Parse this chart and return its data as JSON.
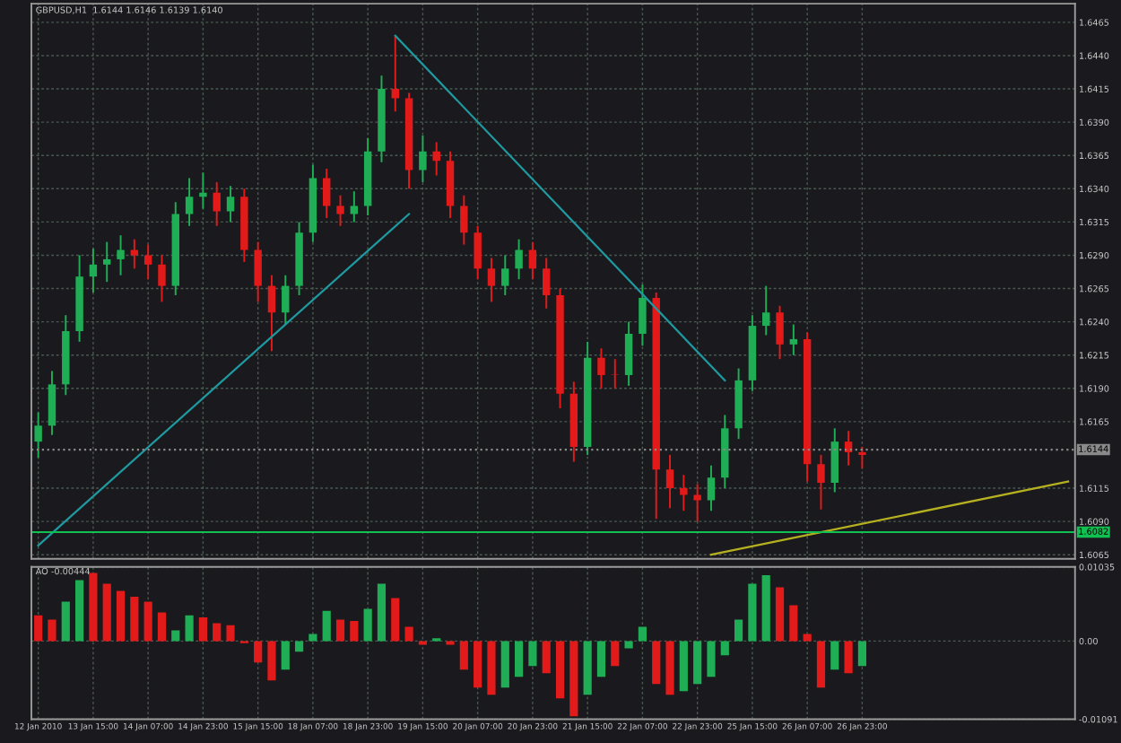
{
  "chart_data": [
    {
      "type": "candlestick",
      "title": "GBPUSD,H1  1.6144 1.6146 1.6139 1.6140",
      "tick_labels": "y",
      "grid": true,
      "legend": false,
      "categories": [
        null,
        null,
        null,
        null,
        null,
        null,
        null,
        null,
        null,
        null,
        null,
        null,
        null,
        null,
        null,
        null,
        null,
        null,
        null,
        null,
        null,
        null,
        null,
        null,
        null,
        null,
        null,
        null,
        null,
        null,
        null,
        null,
        null,
        null,
        null,
        null,
        null,
        null,
        null,
        null,
        null,
        null,
        null,
        null,
        null,
        null,
        null,
        null,
        null,
        null,
        null,
        null,
        null,
        null,
        null,
        null,
        null,
        null,
        null,
        null,
        null,
        null,
        null,
        null,
        null,
        null,
        null,
        null,
        null,
        null,
        null,
        null,
        null,
        null,
        null,
        null
      ],
      "ohlc": [
        [
          1.615,
          1.6172,
          1.6138,
          1.6162
        ],
        [
          1.6162,
          1.6203,
          1.6155,
          1.6193
        ],
        [
          1.6193,
          1.6245,
          1.6185,
          1.6233
        ],
        [
          1.6233,
          1.629,
          1.6225,
          1.6274
        ],
        [
          1.6274,
          1.6295,
          1.6262,
          1.6283
        ],
        [
          1.6283,
          1.63,
          1.627,
          1.6287
        ],
        [
          1.6287,
          1.6305,
          1.6275,
          1.6294
        ],
        [
          1.6294,
          1.6302,
          1.628,
          1.629
        ],
        [
          1.629,
          1.6298,
          1.6272,
          1.6283
        ],
        [
          1.6283,
          1.629,
          1.6255,
          1.6267
        ],
        [
          1.6267,
          1.633,
          1.626,
          1.6321
        ],
        [
          1.6321,
          1.6348,
          1.6312,
          1.6334
        ],
        [
          1.6334,
          1.6352,
          1.6325,
          1.6337
        ],
        [
          1.6337,
          1.6345,
          1.6312,
          1.6323
        ],
        [
          1.6323,
          1.6342,
          1.6315,
          1.6334
        ],
        [
          1.6334,
          1.634,
          1.6285,
          1.6294
        ],
        [
          1.6294,
          1.63,
          1.6255,
          1.6267
        ],
        [
          1.6267,
          1.6275,
          1.6218,
          1.6247
        ],
        [
          1.6247,
          1.6275,
          1.6238,
          1.6267
        ],
        [
          1.6267,
          1.6315,
          1.626,
          1.6307
        ],
        [
          1.6307,
          1.6358,
          1.63,
          1.6348
        ],
        [
          1.6348,
          1.6355,
          1.6318,
          1.6327
        ],
        [
          1.6327,
          1.6335,
          1.6312,
          1.6321
        ],
        [
          1.6321,
          1.6338,
          1.6315,
          1.6327
        ],
        [
          1.6327,
          1.6378,
          1.632,
          1.6368
        ],
        [
          1.6368,
          1.6425,
          1.636,
          1.6415
        ],
        [
          1.6415,
          1.6455,
          1.6398,
          1.6408
        ],
        [
          1.6408,
          1.6412,
          1.634,
          1.6354
        ],
        [
          1.6354,
          1.638,
          1.6345,
          1.6368
        ],
        [
          1.6368,
          1.6375,
          1.635,
          1.6361
        ],
        [
          1.6361,
          1.6368,
          1.6318,
          1.6327
        ],
        [
          1.6327,
          1.6335,
          1.6298,
          1.6307
        ],
        [
          1.6307,
          1.6312,
          1.6272,
          1.628
        ],
        [
          1.628,
          1.6288,
          1.6255,
          1.6267
        ],
        [
          1.6267,
          1.629,
          1.626,
          1.628
        ],
        [
          1.628,
          1.6302,
          1.6272,
          1.6294
        ],
        [
          1.6294,
          1.63,
          1.6272,
          1.628
        ],
        [
          1.628,
          1.6288,
          1.625,
          1.626
        ],
        [
          1.626,
          1.6265,
          1.6175,
          1.6186
        ],
        [
          1.6186,
          1.6195,
          1.6135,
          1.6146
        ],
        [
          1.6146,
          1.6225,
          1.614,
          1.6213
        ],
        [
          1.6213,
          1.622,
          1.619,
          1.62
        ],
        [
          1.62,
          1.6212,
          1.619,
          1.62
        ],
        [
          1.62,
          1.624,
          1.6192,
          1.6231
        ],
        [
          1.6231,
          1.6268,
          1.6222,
          1.6258
        ],
        [
          1.6258,
          1.6262,
          1.6092,
          1.6129
        ],
        [
          1.6129,
          1.614,
          1.61,
          1.6115
        ],
        [
          1.6115,
          1.6125,
          1.6098,
          1.611
        ],
        [
          1.611,
          1.6118,
          1.609,
          1.6106
        ],
        [
          1.6106,
          1.6132,
          1.6098,
          1.6123
        ],
        [
          1.6123,
          1.617,
          1.6115,
          1.616
        ],
        [
          1.616,
          1.6205,
          1.6152,
          1.6196
        ],
        [
          1.6196,
          1.6245,
          1.6188,
          1.6237
        ],
        [
          1.6237,
          1.6267,
          1.623,
          1.6247
        ],
        [
          1.6247,
          1.6252,
          1.6212,
          1.6223
        ],
        [
          1.6223,
          1.6238,
          1.6215,
          1.6227
        ],
        [
          1.6227,
          1.6232,
          1.612,
          1.6133
        ],
        [
          1.6133,
          1.614,
          1.6099,
          1.6119
        ],
        [
          1.6119,
          1.616,
          1.6112,
          1.615
        ],
        [
          1.615,
          1.6158,
          1.6132,
          1.6142
        ],
        [
          1.6142,
          1.6146,
          1.613,
          1.614
        ],
        null,
        null,
        null,
        null,
        null,
        null,
        null,
        null,
        null,
        null,
        null,
        null,
        null,
        null,
        null
      ],
      "colors": [
        "#1fae55",
        "#1fae55",
        "#1fae55",
        "#1fae55",
        "#1fae55",
        "#1fae55",
        "#1fae55",
        "#e31a1a",
        "#e31a1a",
        "#e31a1a",
        "#1fae55",
        "#1fae55",
        "#1fae55",
        "#e31a1a",
        "#1fae55",
        "#e31a1a",
        "#e31a1a",
        "#e31a1a",
        "#1fae55",
        "#1fae55",
        "#1fae55",
        "#e31a1a",
        "#e31a1a",
        "#1fae55",
        "#1fae55",
        "#1fae55",
        "#e31a1a",
        "#e31a1a",
        "#1fae55",
        "#e31a1a",
        "#e31a1a",
        "#e31a1a",
        "#e31a1a",
        "#e31a1a",
        "#1fae55",
        "#1fae55",
        "#e31a1a",
        "#e31a1a",
        "#e31a1a",
        "#e31a1a",
        "#1fae55",
        "#e31a1a",
        "#e31a1a",
        "#1fae55",
        "#1fae55",
        "#e31a1a",
        "#e31a1a",
        "#e31a1a",
        "#e31a1a",
        "#1fae55",
        "#1fae55",
        "#1fae55",
        "#1fae55",
        "#1fae55",
        "#e31a1a",
        "#1fae55",
        "#e31a1a",
        "#e31a1a",
        "#1fae55",
        "#e31a1a",
        "#e31a1a",
        null,
        null,
        null,
        null,
        null,
        null,
        null,
        null,
        null,
        null,
        null,
        null,
        null,
        null,
        null
      ],
      "series": [
        {
          "type": "line",
          "color": "#1e9aa0",
          "values": [
            1.6072,
            null,
            null,
            null,
            null,
            null,
            null,
            null,
            null,
            null,
            null,
            null,
            null,
            null,
            null,
            null,
            null,
            null,
            null,
            null,
            null,
            null,
            null,
            null,
            null,
            null,
            null,
            1.6321,
            null,
            null,
            null,
            null,
            null,
            null,
            null,
            null,
            null,
            null,
            null,
            null,
            null,
            null,
            null,
            null,
            null,
            null,
            null,
            null,
            null,
            null,
            null,
            null,
            null,
            null,
            null,
            null,
            null,
            null,
            null,
            null,
            null,
            null,
            null,
            null,
            null,
            null,
            null,
            null,
            null,
            null,
            null,
            null,
            null,
            null,
            null,
            null
          ]
        },
        {
          "type": "line",
          "color": "#1e9aa0",
          "values": [
            null,
            null,
            null,
            null,
            null,
            null,
            null,
            null,
            null,
            null,
            null,
            null,
            null,
            null,
            null,
            null,
            null,
            null,
            null,
            null,
            null,
            null,
            null,
            null,
            null,
            null,
            1.6455,
            null,
            null,
            null,
            null,
            null,
            null,
            null,
            null,
            null,
            null,
            null,
            null,
            null,
            null,
            null,
            null,
            null,
            null,
            null,
            null,
            null,
            null,
            null,
            1.6196,
            null,
            null,
            null,
            null,
            null,
            null,
            null,
            null,
            null,
            null,
            null,
            null,
            null,
            null,
            null,
            null,
            null,
            null,
            null,
            null,
            null,
            null,
            null,
            null,
            null
          ]
        },
        {
          "type": "line",
          "color": "#b5b020",
          "values": [
            null,
            null,
            null,
            null,
            null,
            null,
            null,
            null,
            null,
            null,
            null,
            null,
            null,
            null,
            null,
            null,
            null,
            null,
            null,
            null,
            null,
            null,
            null,
            null,
            null,
            null,
            null,
            null,
            null,
            null,
            null,
            null,
            null,
            null,
            null,
            null,
            null,
            null,
            null,
            null,
            null,
            null,
            null,
            null,
            null,
            null,
            null,
            null,
            null,
            1.6065,
            null,
            null,
            null,
            null,
            null,
            null,
            null,
            null,
            null,
            null,
            null,
            null,
            null,
            null,
            null,
            null,
            null,
            null,
            null,
            null,
            null,
            null,
            null,
            null,
            null,
            1.612
          ]
        }
      ],
      "ylim": [
        1.6062,
        1.6479
      ],
      "yticks": [
        {
          "value": 1.6065,
          "label": "1.6065"
        },
        {
          "value": 1.609,
          "label": "1.6090"
        },
        {
          "value": 1.6115,
          "label": "1.6115"
        },
        {
          "value": 1.6165,
          "label": "1.6165"
        },
        {
          "value": 1.619,
          "label": "1.6190"
        },
        {
          "value": 1.6215,
          "label": "1.6215"
        },
        {
          "value": 1.624,
          "label": "1.6240"
        },
        {
          "value": 1.6265,
          "label": "1.6265"
        },
        {
          "value": 1.629,
          "label": "1.6290"
        },
        {
          "value": 1.6315,
          "label": "1.6315"
        },
        {
          "value": 1.634,
          "label": "1.6340"
        },
        {
          "value": 1.6365,
          "label": "1.6365"
        },
        {
          "value": 1.639,
          "label": "1.6390"
        },
        {
          "value": 1.6415,
          "label": "1.6415"
        },
        {
          "value": 1.644,
          "label": "1.6440"
        },
        {
          "value": 1.6465,
          "label": "1.6465"
        }
      ],
      "ref_lines": [
        {
          "axis": "y",
          "value": 1.6144,
          "label": "1.6144",
          "color": "#8a8a8a",
          "line_style": "dotted"
        },
        {
          "axis": "y",
          "value": 1.6082,
          "label": "1.6082",
          "color": "#10c050",
          "line_style": "solid"
        }
      ]
    },
    {
      "type": "bar",
      "title": "AO -0.00444",
      "grid": true,
      "legend": false,
      "categories": [
        "12 Jan 2010",
        null,
        null,
        null,
        "13 Jan 15:00",
        null,
        null,
        null,
        "14 Jan 07:00",
        null,
        null,
        null,
        "14 Jan 23:00",
        null,
        null,
        null,
        "15 Jan 15:00",
        null,
        null,
        null,
        "18 Jan 07:00",
        null,
        null,
        null,
        "18 Jan 23:00",
        null,
        null,
        null,
        "19 Jan 15:00",
        null,
        null,
        null,
        "20 Jan 07:00",
        null,
        null,
        null,
        "20 Jan 23:00",
        null,
        null,
        null,
        "21 Jan 15:00",
        null,
        null,
        null,
        "22 Jan 07:00",
        null,
        null,
        null,
        "22 Jan 23:00",
        null,
        null,
        null,
        "25 Jan 15:00",
        null,
        null,
        null,
        "26 Jan 07:00",
        null,
        null,
        null,
        "26 Jan 23:00",
        null,
        null,
        null,
        null,
        null,
        null,
        null,
        null,
        null,
        null,
        null,
        null,
        null,
        null,
        null
      ],
      "values": [
        0.0036,
        0.003,
        0.0055,
        0.0085,
        0.0095,
        0.008,
        0.007,
        0.0062,
        0.0055,
        0.004,
        0.0015,
        0.0036,
        0.0033,
        0.0025,
        0.0022,
        -0.0003,
        -0.003,
        -0.0055,
        -0.004,
        -0.0015,
        0.001,
        0.0042,
        0.003,
        0.0028,
        0.0045,
        0.008,
        0.006,
        0.002,
        -0.0005,
        0.0004,
        -0.0005,
        -0.004,
        -0.0065,
        -0.0075,
        -0.0065,
        -0.005,
        -0.0035,
        -0.0045,
        -0.008,
        -0.0105,
        -0.0075,
        -0.005,
        -0.0035,
        -0.001,
        0.002,
        -0.006,
        -0.0075,
        -0.007,
        -0.006,
        -0.005,
        -0.002,
        0.003,
        0.008,
        0.0092,
        0.0075,
        0.005,
        0.001,
        -0.0065,
        -0.004,
        -0.0045,
        -0.0035,
        null,
        null,
        null,
        null,
        null,
        null,
        null,
        null,
        null,
        null,
        null,
        null,
        null,
        null,
        null
      ],
      "colors": [
        "#e31a1a",
        "#e31a1a",
        "#1fae55",
        "#1fae55",
        "#e31a1a",
        "#e31a1a",
        "#e31a1a",
        "#e31a1a",
        "#e31a1a",
        "#e31a1a",
        "#1fae55",
        "#1fae55",
        "#e31a1a",
        "#e31a1a",
        "#e31a1a",
        "#e31a1a",
        "#e31a1a",
        "#e31a1a",
        "#1fae55",
        "#1fae55",
        "#1fae55",
        "#1fae55",
        "#e31a1a",
        "#e31a1a",
        "#1fae55",
        "#1fae55",
        "#e31a1a",
        "#e31a1a",
        "#e31a1a",
        "#1fae55",
        "#e31a1a",
        "#e31a1a",
        "#e31a1a",
        "#e31a1a",
        "#1fae55",
        "#1fae55",
        "#1fae55",
        "#e31a1a",
        "#e31a1a",
        "#e31a1a",
        "#1fae55",
        "#1fae55",
        "#e31a1a",
        "#1fae55",
        "#1fae55",
        "#e31a1a",
        "#e31a1a",
        "#1fae55",
        "#1fae55",
        "#1fae55",
        "#1fae55",
        "#1fae55",
        "#1fae55",
        "#1fae55",
        "#e31a1a",
        "#e31a1a",
        "#e31a1a",
        "#e31a1a",
        "#1fae55",
        "#e31a1a",
        "#1fae55",
        null,
        null,
        null,
        null,
        null,
        null,
        null,
        null,
        null,
        null,
        null,
        null,
        null,
        null,
        null
      ],
      "ylim": [
        -0.01091,
        0.01035
      ],
      "yticks": [
        {
          "value": -0.01091,
          "label": "-0.01091"
        },
        {
          "value": 0,
          "label": "0.00"
        },
        {
          "value": 0.01035,
          "label": "0.01035"
        }
      ]
    }
  ]
}
